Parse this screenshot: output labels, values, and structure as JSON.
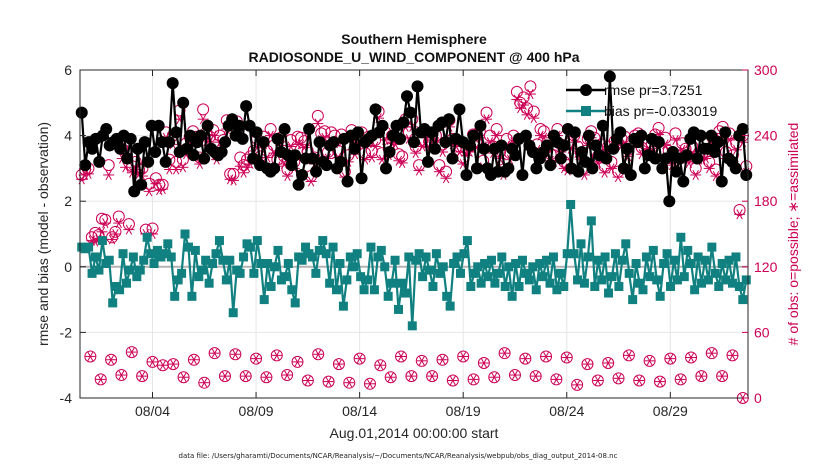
{
  "chart_data": {
    "type": "line",
    "title": "Southern Hemisphere",
    "subtitle": "RADIOSONDE_U_WIND_COMPONENT @ 400 hPa",
    "xlabel": "Aug.01,2014 00:00:00 start",
    "ylabel_left": "rmse and bias (model - observation)",
    "ylabel_right": "# of obs: o=possible; ∗=assimilated",
    "xlim": [
      0,
      32.25
    ],
    "ylim_left": [
      -4,
      6
    ],
    "ylim_right": [
      0,
      300
    ],
    "x_ticks": [
      {
        "value": 3.5,
        "label": "08/04"
      },
      {
        "value": 8.5,
        "label": "08/09"
      },
      {
        "value": 13.5,
        "label": "08/14"
      },
      {
        "value": 18.5,
        "label": "08/19"
      },
      {
        "value": 23.5,
        "label": "08/24"
      },
      {
        "value": 28.5,
        "label": "08/29"
      }
    ],
    "y_ticks_left": [
      -4,
      -2,
      0,
      2,
      4,
      6
    ],
    "y_ticks_right": [
      0,
      60,
      120,
      180,
      240,
      300
    ],
    "grid": true,
    "legend_position": "top-right",
    "footnote": "data file: /Users/gharamti/Documents/NCAR/Reanalysis/~/Documents/NCAR/Reanalysis/webpub/obs_diag_output_2014-08.nc",
    "colors": {
      "rmse": "#000000",
      "bias": "#108080",
      "counts": "#cc0055",
      "zero_line": "#b4b4b4"
    },
    "series": [
      {
        "name": "rmse",
        "legend": "rmse pr=3.7251",
        "values": [
          4.7,
          3.1,
          3.8,
          3.6,
          3.9,
          3.2,
          4.0,
          4.2,
          3.7,
          3.8,
          3.9,
          3.6,
          4.0,
          3.3,
          3.9,
          2.3,
          3.6,
          2.5,
          3.8,
          3.2,
          4.3,
          3.5,
          4.3,
          3.8,
          3.2,
          3.8,
          5.6,
          4.1,
          3.5,
          5.0,
          3.6,
          4.0,
          3.4,
          3.8,
          4.0,
          3.3,
          4.3,
          3.6,
          3.5,
          3.4,
          3.5,
          3.8,
          4.3,
          4.5,
          4.0,
          4.3,
          3.9,
          4.9,
          4.3,
          3.3,
          4.1,
          3.1,
          3.8,
          3.0,
          2.9,
          3.0,
          3.9,
          3.5,
          4.2,
          3.4,
          3.1,
          3.4,
          2.5,
          2.8,
          3.3,
          4.2,
          3.3,
          2.9,
          3.8,
          3.2,
          3.1,
          3.7,
          3.8,
          3.0,
          3.2,
          3.9,
          2.6,
          4.0,
          3.6,
          4.1,
          2.7,
          3.8,
          3.9,
          4.0,
          4.8,
          4.1,
          4.3,
          3.0,
          3.5,
          4.0,
          4.3,
          3.9,
          4.4,
          5.2,
          4.7,
          3.8,
          5.5,
          4.1,
          4.2,
          3.2,
          4.1,
          3.6,
          4.3,
          4.4,
          3.8,
          4.5,
          3.3,
          3.9,
          4.8,
          3.8,
          2.8,
          3.7,
          4.0,
          3.0,
          4.3,
          3.6,
          3.0,
          2.8,
          3.6,
          2.9,
          3.7,
          2.9,
          3.0,
          3.6,
          3.4,
          3.9,
          2.8,
          4.0,
          3.7,
          3.5,
          3.0,
          3.3,
          3.5,
          3.7,
          3.1,
          4.0,
          3.8,
          3.3,
          3.7,
          4.2,
          3.0,
          4.1,
          2.9,
          3.5,
          3.2,
          4.0,
          3.0,
          3.7,
          3.4,
          4.3,
          3.3,
          5.8,
          3.6,
          3.9,
          4.1,
          3.0,
          3.6,
          2.8,
          3.9,
          3.8,
          4.0,
          3.0,
          3.4,
          3.9,
          3.3,
          3.8,
          3.0,
          3.3,
          2.0,
          3.5,
          2.9,
          3.3,
          2.6,
          3.4,
          3.9,
          4.1,
          3.3,
          4.0,
          3.6,
          3.6,
          4.0,
          3.5,
          3.8,
          2.6,
          4.1,
          3.3,
          3.2,
          3.0,
          4.0,
          4.2,
          2.8
        ],
        "linestyle": "solid",
        "marker": "filled-circle"
      },
      {
        "name": "bias",
        "legend": "bias pr=-0.033019",
        "values": [
          0.6,
          0.55,
          0.6,
          -0.2,
          0.3,
          -0.1,
          0.8,
          0.1,
          0.2,
          -1.1,
          -0.6,
          -0.7,
          0.4,
          -0.5,
          -0.1,
          0.3,
          -0.3,
          -0.1,
          0.2,
          0.9,
          0.4,
          0.1,
          0.5,
          0.3,
          0.4,
          0.7,
          0.3,
          -0.9,
          -0.4,
          -0.2,
          1.0,
          0.6,
          -0.9,
          0.5,
          -0.3,
          -0.1,
          0.2,
          -0.5,
          0.1,
          0.4,
          0.8,
          0.2,
          -0.4,
          0.2,
          -1.4,
          -0.1,
          -0.2,
          0.3,
          0.7,
          0.6,
          -0.2,
          0.8,
          0.1,
          -1.0,
          0.1,
          -0.6,
          0.0,
          0.5,
          -0.4,
          -0.3,
          0.1,
          -0.7,
          -1.1,
          0.3,
          0.2,
          0.6,
          0.4,
          0.3,
          -0.2,
          0.5,
          0.8,
          0.4,
          -0.5,
          0.6,
          -0.7,
          0.1,
          -1.2,
          -0.4,
          0.3,
          0.0,
          0.4,
          -0.3,
          -0.7,
          -0.4,
          0.6,
          -0.7,
          0.3,
          0.5,
          0.0,
          -0.9,
          -0.5,
          0.2,
          -1.3,
          -0.5,
          -0.8,
          0.3,
          -1.8,
          0.2,
          0.4,
          -0.3,
          0.3,
          -0.1,
          -0.6,
          0.4,
          -0.2,
          0.0,
          -0.9,
          -1.2,
          0.1,
          0.3,
          -0.2,
          0.4,
          0.8,
          -0.6,
          -0.2,
          0.0,
          -0.5,
          0.1,
          -0.3,
          0.2,
          -0.5,
          -0.2,
          0.3,
          -0.6,
          0.0,
          -0.9,
          0.1,
          -0.6,
          0.2,
          -0.2,
          -0.4,
          0.0,
          -0.7,
          0.1,
          -0.3,
          0.2,
          -0.5,
          0.3,
          -0.7,
          -0.2,
          -0.6,
          0.4,
          1.9,
          0.4,
          -0.4,
          0.7,
          -0.5,
          0.3,
          1.4,
          -0.6,
          0.2,
          -0.4,
          0.3,
          -0.8,
          -0.3,
          0.4,
          -0.6,
          0.2,
          0.7,
          -0.2,
          -1.0,
          0.1,
          -0.5,
          -0.7,
          0.3,
          -0.3,
          0.5,
          -0.4,
          -0.9,
          0.1,
          0.4,
          -0.6,
          0.2,
          -0.4,
          0.9,
          -0.3,
          0.5,
          0.1,
          -0.7,
          0.3,
          -0.5,
          0.2,
          -0.4,
          0.6,
          -0.2,
          -0.6,
          0.1,
          -0.4,
          0.2,
          -0.5,
          0.3,
          -0.6,
          -1.0,
          -0.4
        ],
        "linestyle": "solid",
        "marker": "filled-square"
      },
      {
        "name": "possible",
        "values": [
          204,
          209,
          210,
          147,
          151,
          149,
          164,
          163,
          213,
          147,
          152,
          166,
          228,
          226,
          159,
          212,
          216,
          209,
          210,
          154,
          196,
          155,
          201,
          195,
          195,
          243,
          218,
          240,
          216,
          263,
          218,
          233,
          239,
          244,
          239,
          220,
          264,
          243,
          239,
          245,
          223,
          240,
          236,
          254,
          205,
          205,
          253,
          220,
          213,
          218,
          221,
          226,
          237,
          221,
          239,
          226,
          246,
          231,
          218,
          238,
          221,
          209,
          236,
          216,
          239,
          238,
          235,
          226,
          203,
          220,
          258,
          242,
          244,
          225,
          243,
          240,
          226,
          241,
          207,
          222,
          245,
          229,
          239,
          243,
          224,
          239,
          226,
          236,
          262,
          224,
          243,
          228,
          240,
          238,
          223,
          221,
          255,
          243,
          255,
          230,
          213,
          236,
          244,
          235,
          242,
          240,
          213,
          232,
          207,
          254,
          237,
          236,
          230,
          220,
          228,
          230,
          241,
          235,
          244,
          217,
          261,
          240,
          230,
          246,
          225,
          209,
          237,
          224,
          240,
          280,
          270,
          275,
          265,
          285,
          262,
          232,
          246,
          244,
          231,
          223,
          222,
          246,
          232,
          216,
          213,
          234,
          240,
          230,
          224,
          210,
          237,
          244,
          238,
          221,
          232,
          212,
          230,
          216,
          235,
          207,
          237,
          239,
          227,
          235,
          240,
          242,
          229,
          232,
          234,
          232,
          241,
          247,
          226,
          238,
          226,
          219,
          242,
          221,
          233,
          228,
          221,
          230,
          210,
          224,
          224,
          225,
          216,
          238,
          209,
          244,
          248,
          225,
          242,
          222,
          233,
          172,
          240,
          212
        ],
        "marker": "open-circle"
      },
      {
        "name": "assimilated",
        "values": [
          200,
          204,
          205,
          144,
          143,
          145,
          152,
          160,
          204,
          145,
          150,
          160,
          219,
          211,
          154,
          206,
          209,
          205,
          203,
          150,
          189,
          150,
          196,
          190,
          191,
          238,
          209,
          232,
          209,
          255,
          211,
          223,
          232,
          238,
          234,
          214,
          255,
          235,
          234,
          240,
          218,
          234,
          231,
          246,
          200,
          199,
          244,
          212,
          206,
          211,
          214,
          219,
          229,
          215,
          232,
          220,
          240,
          224,
          212,
          231,
          214,
          203,
          230,
          210,
          232,
          232,
          229,
          220,
          198,
          214,
          251,
          236,
          238,
          219,
          235,
          233,
          220,
          234,
          202,
          216,
          238,
          223,
          232,
          236,
          218,
          233,
          220,
          230,
          256,
          218,
          236,
          222,
          234,
          232,
          217,
          215,
          248,
          237,
          248,
          224,
          208,
          230,
          238,
          229,
          236,
          234,
          207,
          225,
          201,
          248,
          232,
          230,
          225,
          214,
          222,
          225,
          235,
          229,
          238,
          211,
          255,
          234,
          224,
          240,
          219,
          204,
          231,
          218,
          234,
          273,
          265,
          268,
          259,
          278,
          256,
          227,
          240,
          238,
          225,
          217,
          216,
          240,
          225,
          210,
          208,
          228,
          234,
          224,
          218,
          204,
          231,
          238,
          232,
          215,
          226,
          206,
          224,
          210,
          229,
          202,
          231,
          233,
          221,
          229,
          234,
          236,
          223,
          226,
          228,
          226,
          235,
          241,
          220,
          232,
          220,
          213,
          236,
          215,
          227,
          222,
          215,
          224,
          204,
          218,
          218,
          219,
          210,
          232,
          203,
          238,
          242,
          219,
          236,
          216,
          227,
          168,
          234,
          206
        ],
        "marker": "asterisk"
      }
    ],
    "lower_counts": {
      "name": "lower-level obs counts (possible & assimilated)",
      "x": [
        0.5,
        1.5,
        2.5,
        3.5,
        4.5,
        5.5,
        6.5,
        7.5,
        8.5,
        9.5,
        10.5,
        11.5,
        12.5,
        13.5,
        14.5,
        15.5,
        16.5,
        17.5,
        18.5,
        19.5,
        20.5,
        21.5,
        22.5,
        23.5,
        24.5,
        25.5,
        26.5,
        27.5,
        28.5,
        29.5,
        30.5,
        31.5,
        1.0,
        2.0,
        3.0,
        4.0,
        5.0,
        6.0,
        7.0,
        8.0,
        9.0,
        10.0,
        11.0,
        12.0,
        13.0,
        14.0,
        15.0,
        16.0,
        17.0,
        18.0,
        19.0,
        20.0,
        21.0,
        22.0,
        23.0,
        24.0,
        25.0,
        26.0,
        27.0,
        28.0,
        29.0,
        30.0,
        31.0,
        32.0
      ],
      "values": [
        38,
        35,
        42,
        33,
        31,
        35,
        41,
        40,
        36,
        39,
        33,
        40,
        31,
        36,
        30,
        38,
        34,
        35,
        38,
        32,
        41,
        36,
        38,
        37,
        31,
        32,
        39,
        34,
        36,
        37,
        41,
        39,
        17,
        21,
        20,
        30,
        19,
        14,
        20,
        20,
        19,
        21,
        16,
        15,
        14,
        13,
        19,
        20,
        20,
        16,
        17,
        19,
        21,
        20,
        17,
        12,
        16,
        18,
        16,
        15,
        17,
        20,
        20,
        0
      ],
      "marker": "circle-asterisk"
    }
  }
}
